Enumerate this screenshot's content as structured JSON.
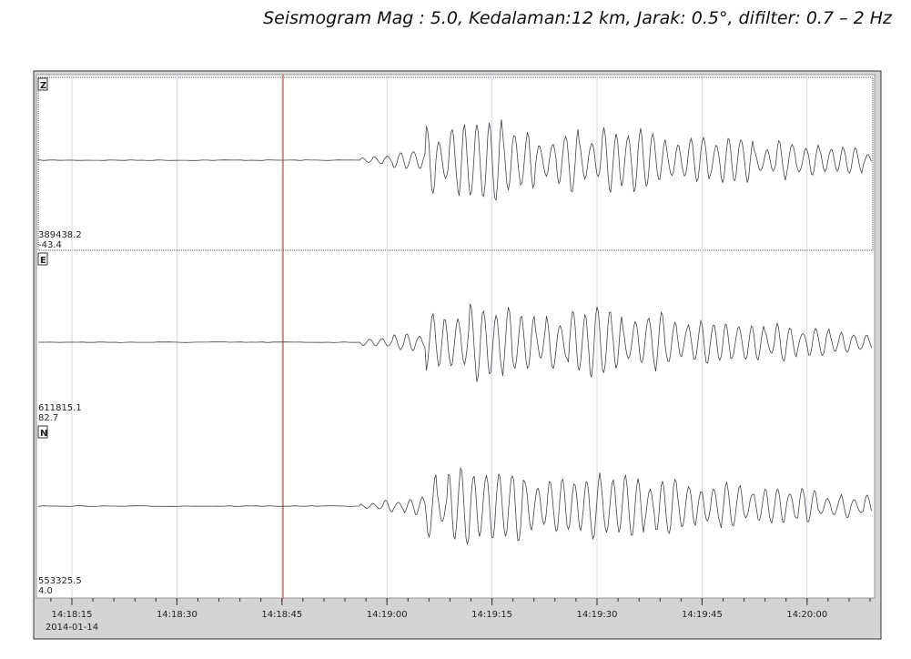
{
  "title": "Seismogram Mag : 5.0, Kedalaman:12 km, Jarak: 0.5°, difilter: 0.7 – 2 Hz",
  "channels": [
    {
      "label": "Z",
      "scale_top": "389438.2",
      "scale_bottom": "-43.4"
    },
    {
      "label": "E",
      "scale_top": "611815.1",
      "scale_bottom": "82.7"
    },
    {
      "label": "N",
      "scale_top": "553325.5",
      "scale_bottom": "4.0"
    }
  ],
  "time_axis": {
    "ticks": [
      "14:18:15",
      "14:18:30",
      "14:18:45",
      "14:19:00",
      "14:19:15",
      "14:19:30",
      "14:19:45",
      "14:20:00"
    ],
    "date": "2014-01-14"
  }
}
